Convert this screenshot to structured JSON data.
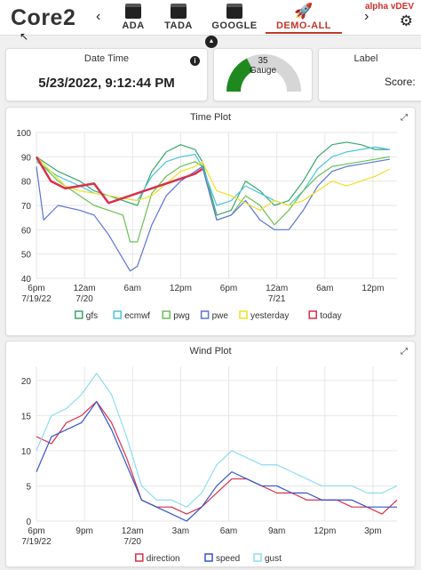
{
  "app": {
    "logo_main": "Core2",
    "logo_sub": "",
    "version": "alpha vDEV"
  },
  "nav": {
    "prev": "‹",
    "next": "›",
    "tabs": [
      {
        "label": "ADA",
        "icon": "calendar-icon",
        "active": false
      },
      {
        "label": "TADA",
        "icon": "calendar-icon",
        "active": false
      },
      {
        "label": "GOOGLE",
        "icon": "calendar-icon",
        "active": false
      },
      {
        "label": "DEMO-ALL",
        "icon": "rocket-icon",
        "active": true
      }
    ]
  },
  "widgets": {
    "datetime": {
      "title": "Date Time",
      "value": "5/23/2022, 9:12:44 PM"
    },
    "gauge": {
      "value": "35",
      "label": "Gauge",
      "fraction": 0.35,
      "color": "#1e8a1e"
    },
    "label": {
      "title": "Label",
      "value": "Score:"
    }
  },
  "time_plot": {
    "title": "Time Plot",
    "y_ticks": [
      "100",
      "90",
      "80",
      "70",
      "60",
      "50",
      "40"
    ],
    "x_ticks": [
      {
        "line1": "6pm",
        "line2": "7/19/22"
      },
      {
        "line1": "12am",
        "line2": "7/20"
      },
      {
        "line1": "6am",
        "line2": ""
      },
      {
        "line1": "12pm",
        "line2": ""
      },
      {
        "line1": "6pm",
        "line2": ""
      },
      {
        "line1": "12am",
        "line2": "7/21"
      },
      {
        "line1": "6am",
        "line2": ""
      },
      {
        "line1": "12pm",
        "line2": ""
      }
    ],
    "legend": [
      {
        "name": "gfs",
        "color": "#3aa66a"
      },
      {
        "name": "ecmwf",
        "color": "#4cc3e0"
      },
      {
        "name": "pwg",
        "color": "#69c053"
      },
      {
        "name": "pwe",
        "color": "#5b74d6"
      },
      {
        "name": "yesterday",
        "color": "#f0e020"
      },
      {
        "name": "today",
        "color": "#d8304a"
      }
    ]
  },
  "wind_plot": {
    "title": "Wind Plot",
    "y_ticks": [
      "20",
      "15",
      "10",
      "5",
      "0"
    ],
    "x_ticks": [
      {
        "line1": "6pm",
        "line2": "7/19/22"
      },
      {
        "line1": "9pm",
        "line2": ""
      },
      {
        "line1": "12am",
        "line2": "7/20"
      },
      {
        "line1": "3am",
        "line2": ""
      },
      {
        "line1": "6am",
        "line2": ""
      },
      {
        "line1": "9am",
        "line2": ""
      },
      {
        "line1": "12pm",
        "line2": ""
      },
      {
        "line1": "3pm",
        "line2": ""
      }
    ],
    "legend": [
      {
        "name": "direction",
        "color": "#d8304a"
      },
      {
        "name": "speed",
        "color": "#3355cc"
      },
      {
        "name": "gust",
        "color": "#8fdcf0"
      }
    ]
  },
  "chart_data": [
    {
      "type": "line",
      "title": "Time Plot",
      "xlabel": "",
      "ylabel": "",
      "ylim": [
        40,
        100
      ],
      "x_unit": "hours since 6pm 7/19/22",
      "xlim": [
        0,
        50
      ],
      "series": [
        {
          "name": "gfs",
          "color": "#3aa66a",
          "x": [
            0,
            3,
            6,
            8,
            10,
            12,
            14,
            16,
            18,
            20,
            22,
            23,
            25,
            27,
            29,
            31,
            33,
            35,
            37,
            39,
            41,
            43,
            45,
            47,
            49
          ],
          "y": [
            90,
            84,
            80,
            76,
            74,
            72,
            70,
            84,
            92,
            95,
            93,
            88,
            66,
            68,
            80,
            76,
            70,
            72,
            80,
            90,
            95,
            96,
            95,
            93,
            93
          ]
        },
        {
          "name": "ecmwf",
          "color": "#4cc3e0",
          "x": [
            0,
            3,
            6,
            8,
            10,
            12,
            14,
            16,
            18,
            20,
            22,
            23,
            25,
            27,
            29,
            31,
            33,
            35,
            37,
            39,
            41,
            43,
            45,
            47,
            49
          ],
          "y": [
            88,
            82,
            78,
            75,
            74,
            73,
            72,
            82,
            88,
            90,
            91,
            86,
            70,
            72,
            78,
            75,
            72,
            70,
            76,
            85,
            90,
            92,
            93,
            94,
            93
          ]
        },
        {
          "name": "pwg",
          "color": "#69c053",
          "x": [
            0,
            3,
            6,
            8,
            10,
            12,
            13,
            14,
            16,
            18,
            20,
            22,
            23,
            25,
            27,
            29,
            31,
            33,
            35,
            37,
            39,
            41,
            43,
            45,
            47,
            49
          ],
          "y": [
            89,
            80,
            74,
            70,
            68,
            66,
            55,
            55,
            75,
            82,
            86,
            88,
            86,
            64,
            66,
            74,
            70,
            62,
            68,
            76,
            82,
            86,
            87,
            88,
            89,
            90
          ]
        },
        {
          "name": "pwe",
          "color": "#5b74d6",
          "x": [
            0,
            1,
            3,
            6,
            8,
            10,
            12,
            13,
            14,
            16,
            18,
            20,
            22,
            23,
            25,
            27,
            29,
            31,
            33,
            35,
            37,
            39,
            41,
            43,
            45,
            47,
            49
          ],
          "y": [
            86,
            64,
            70,
            68,
            66,
            58,
            48,
            43,
            45,
            62,
            74,
            80,
            84,
            86,
            64,
            66,
            72,
            64,
            60,
            60,
            68,
            78,
            84,
            86,
            87,
            88,
            89
          ]
        },
        {
          "name": "yesterday",
          "color": "#f0e020",
          "x": [
            0,
            2,
            4,
            6,
            8,
            10,
            12,
            14,
            16,
            18,
            20,
            22,
            23,
            25,
            27,
            29,
            31,
            33,
            35,
            37,
            39,
            41,
            43,
            45,
            47,
            49
          ],
          "y": [
            90,
            84,
            78,
            76,
            75,
            74,
            73,
            72,
            74,
            79,
            84,
            86,
            88,
            76,
            74,
            71,
            68,
            72,
            70,
            72,
            76,
            80,
            78,
            80,
            82,
            85
          ]
        },
        {
          "name": "today",
          "color": "#d8304a",
          "x": [
            0,
            2,
            4,
            6,
            8,
            10,
            12,
            14,
            16,
            18,
            20,
            22,
            23
          ],
          "y": [
            90,
            80,
            77,
            78,
            79,
            71,
            73,
            75,
            77,
            79,
            81,
            83,
            85
          ]
        }
      ]
    },
    {
      "type": "line",
      "title": "Wind Plot",
      "xlabel": "",
      "ylabel": "",
      "ylim": [
        0,
        22
      ],
      "x_unit": "hours since 6pm 7/19/22",
      "xlim": [
        0,
        24
      ],
      "series": [
        {
          "name": "direction",
          "color": "#d8304a",
          "x": [
            0,
            1,
            2,
            3,
            4,
            5,
            6,
            7,
            8,
            9,
            10,
            11,
            12,
            13,
            14,
            15,
            16,
            17,
            18,
            19,
            20,
            21,
            22,
            23,
            24
          ],
          "y": [
            12,
            11,
            14,
            15,
            17,
            14,
            9,
            3,
            2,
            2,
            1,
            2,
            4,
            6,
            6,
            5,
            4,
            4,
            3,
            3,
            3,
            2,
            2,
            1,
            3
          ]
        },
        {
          "name": "speed",
          "color": "#3355cc",
          "x": [
            0,
            1,
            2,
            3,
            4,
            5,
            6,
            7,
            8,
            9,
            10,
            11,
            12,
            13,
            14,
            15,
            16,
            17,
            18,
            19,
            20,
            21,
            22,
            23,
            24
          ],
          "y": [
            7,
            12,
            13,
            14,
            17,
            13,
            8,
            3,
            2,
            1,
            0,
            2,
            5,
            7,
            6,
            5,
            5,
            4,
            4,
            3,
            3,
            3,
            2,
            2,
            2
          ]
        },
        {
          "name": "gust",
          "color": "#8fdcf0",
          "x": [
            0,
            1,
            2,
            3,
            4,
            5,
            6,
            7,
            8,
            9,
            10,
            11,
            12,
            13,
            14,
            15,
            16,
            17,
            18,
            19,
            20,
            21,
            22,
            23,
            24
          ],
          "y": [
            10,
            15,
            16,
            18,
            21,
            18,
            12,
            5,
            3,
            3,
            2,
            4,
            8,
            10,
            9,
            8,
            8,
            7,
            6,
            5,
            5,
            5,
            4,
            4,
            5
          ]
        }
      ]
    }
  ]
}
